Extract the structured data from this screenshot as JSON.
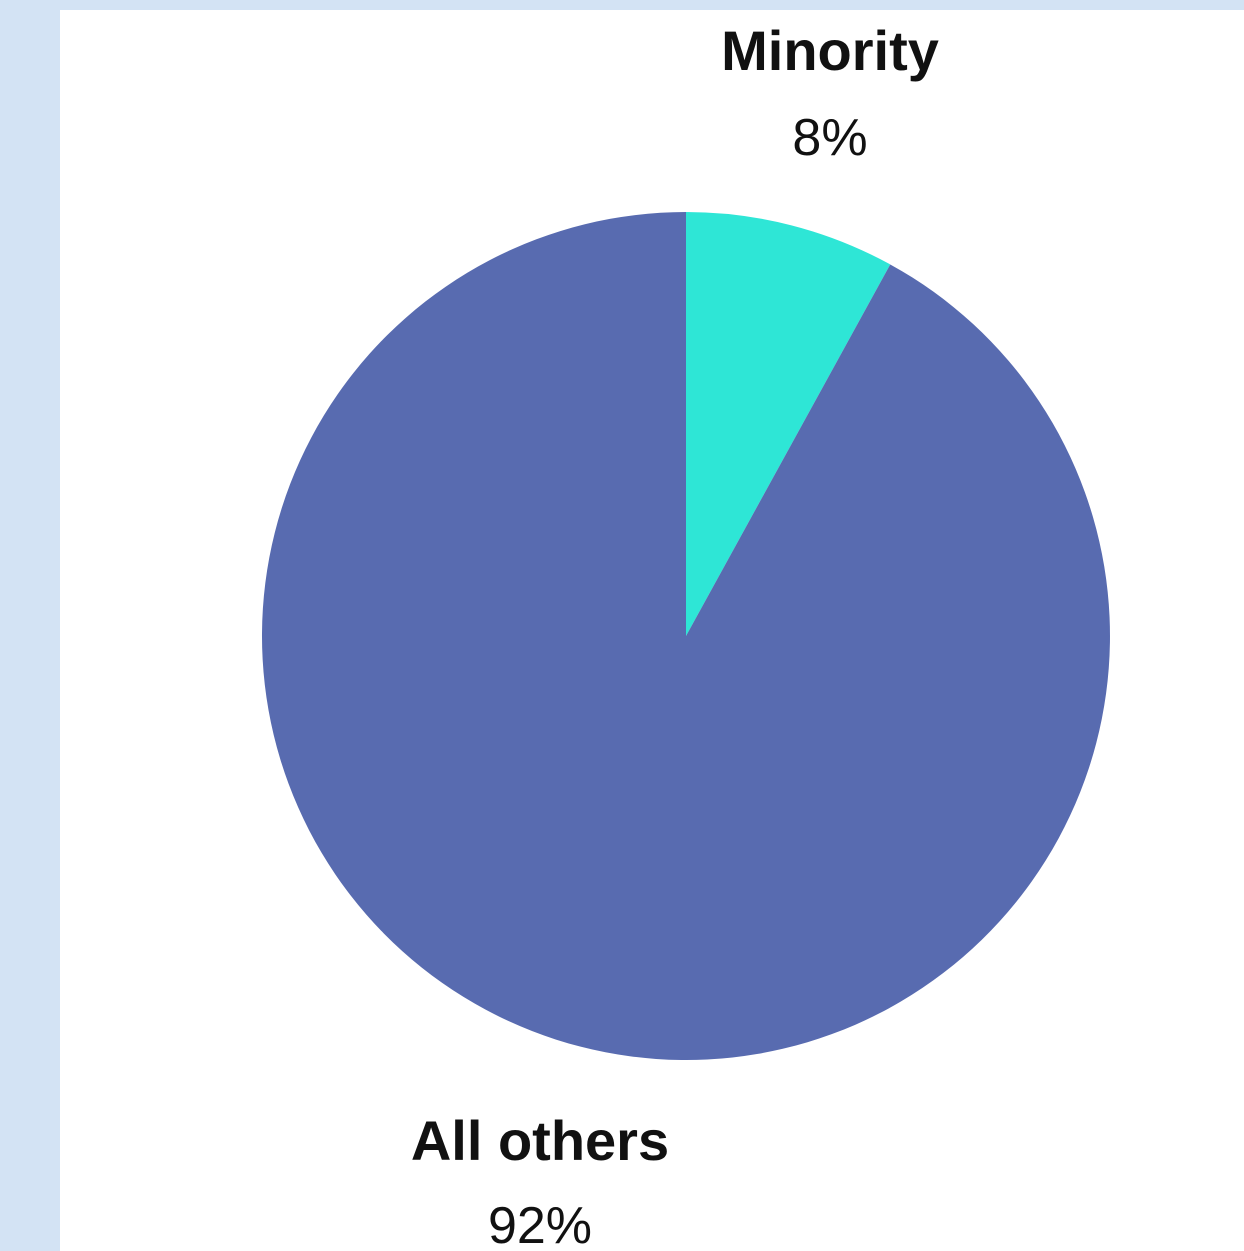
{
  "chart_data": {
    "type": "pie",
    "start_angle_deg": 0,
    "direction": "clockwise",
    "slices": [
      {
        "label": "Minority",
        "value": 8,
        "value_label": "8%",
        "color": "#2ee6d6"
      },
      {
        "label": "All others",
        "value": 92,
        "value_label": "92%",
        "color": "#586bb0"
      }
    ]
  },
  "colors": {
    "page_background": "#d3e3f4",
    "panel_background": "#ffffff",
    "text": "#111111"
  }
}
